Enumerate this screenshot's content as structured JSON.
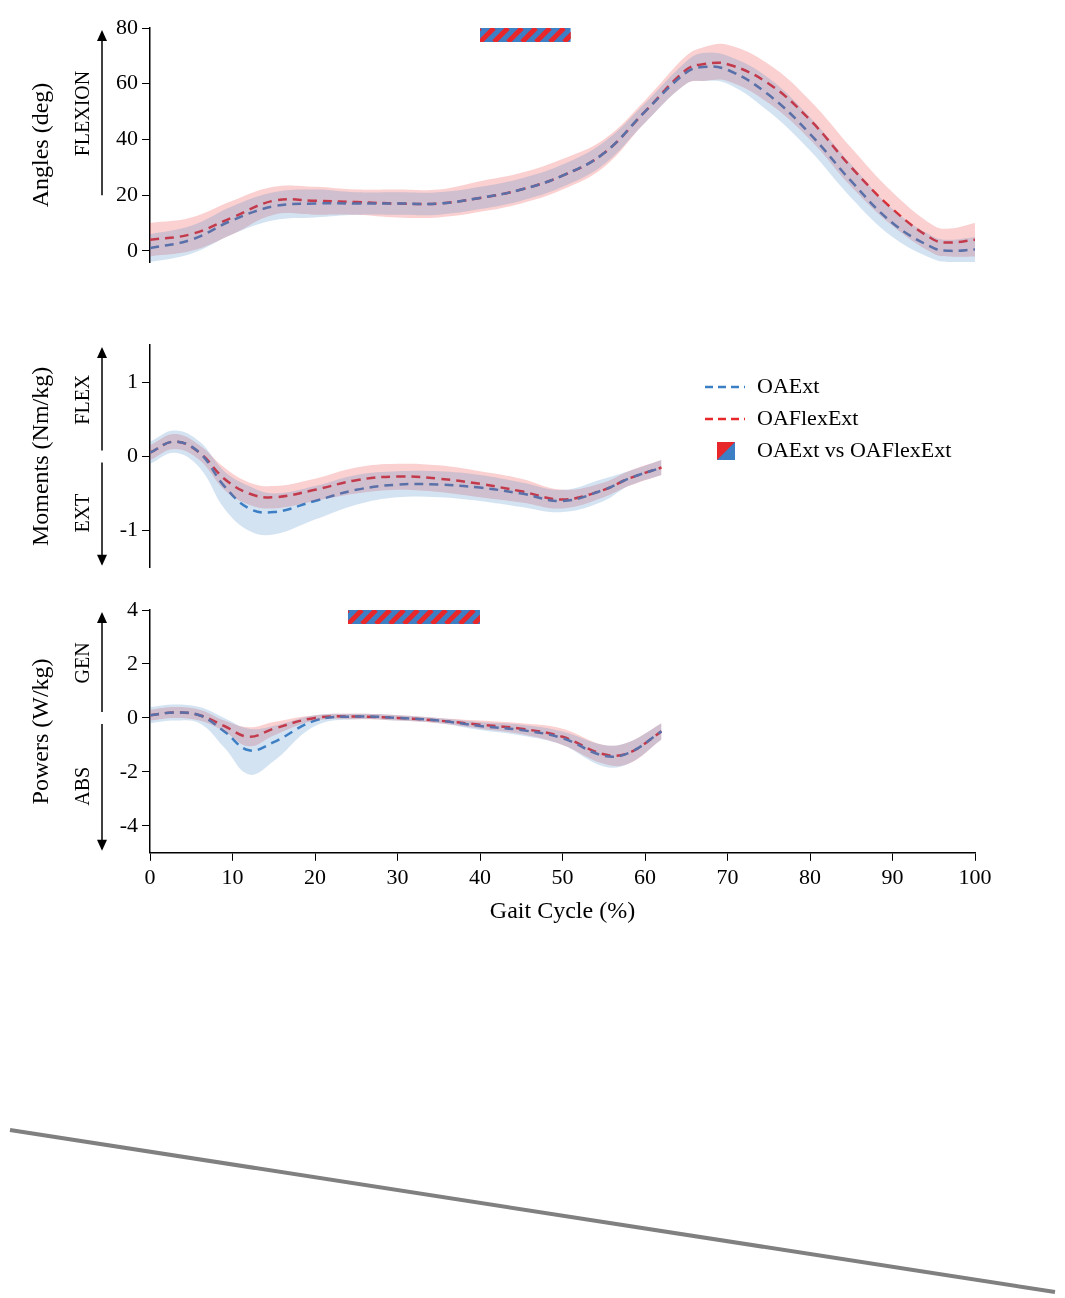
{
  "chart_data": [
    {
      "type": "line",
      "ylabel": "Angles (deg)",
      "direction_labels": {
        "up": "FLEXION"
      },
      "xlim": [
        0,
        100
      ],
      "ylim": [
        -4,
        80
      ],
      "yticks": [
        0,
        20,
        40,
        60,
        80
      ],
      "grid": false,
      "tick_labels": "y",
      "significance": [
        [
          40,
          51
        ]
      ],
      "x": [
        0,
        5,
        10,
        15,
        20,
        25,
        30,
        35,
        40,
        45,
        50,
        55,
        60,
        65,
        67,
        70,
        75,
        80,
        85,
        90,
        95,
        97,
        100
      ],
      "series": [
        {
          "name": "OAExt",
          "color": "#3d7fc4",
          "line_style": "dashed",
          "values": [
            1,
            4,
            11,
            16,
            17,
            17,
            17,
            17,
            19,
            22,
            27,
            35,
            50,
            64,
            66,
            65,
            56,
            42,
            25,
            10,
            1,
            0,
            0.5
          ],
          "upper": [
            6,
            9,
            16,
            21,
            22,
            21,
            21,
            21,
            23,
            26,
            31,
            39,
            53,
            68,
            71,
            70,
            62,
            48,
            31,
            15,
            5,
            4,
            5
          ],
          "lower": [
            -4,
            -1,
            6,
            11,
            12,
            13,
            13,
            13,
            15,
            18,
            23,
            31,
            46,
            60,
            61,
            60,
            50,
            36,
            19,
            5,
            -3,
            -4,
            -4
          ]
        },
        {
          "name": "OAFlexExt",
          "color": "#e8272a",
          "line_style": "dashed",
          "values": [
            4,
            6,
            12,
            18,
            18,
            17.5,
            17,
            17,
            19,
            22,
            27,
            35,
            50,
            65,
            67,
            67,
            60,
            47,
            30,
            15,
            4,
            3,
            4
          ],
          "upper": [
            10,
            12,
            18,
            23,
            23,
            22,
            22,
            22,
            25,
            28,
            33,
            40,
            54,
            70,
            73,
            74,
            67,
            54,
            37,
            21,
            9,
            8,
            10
          ],
          "lower": [
            -2,
            0,
            6,
            13,
            13,
            13,
            12,
            12,
            14,
            17,
            22,
            30,
            46,
            60,
            61,
            61,
            53,
            40,
            23,
            9,
            -1,
            -2,
            -2
          ]
        }
      ]
    },
    {
      "type": "line",
      "ylabel": "Moments (Nm/kg)",
      "direction_labels": {
        "up": "FLEX",
        "down": "EXT"
      },
      "xlim": [
        0,
        100
      ],
      "ylim": [
        -1.5,
        1.5
      ],
      "yticks": [
        -1,
        0,
        1
      ],
      "grid": false,
      "tick_labels": "y",
      "legend": "upper right",
      "significance_name": "OAExt vs OAFlexExt",
      "x": [
        0,
        3,
        6,
        9,
        12,
        15,
        20,
        25,
        30,
        35,
        40,
        45,
        50,
        55,
        58,
        62
      ],
      "series": [
        {
          "name": "OAExt",
          "color": "#3d7fc4",
          "line_style": "dashed",
          "values": [
            0.05,
            0.2,
            0.05,
            -0.4,
            -0.7,
            -0.75,
            -0.6,
            -0.45,
            -0.38,
            -0.38,
            -0.42,
            -0.5,
            -0.6,
            -0.45,
            -0.3,
            -0.15
          ],
          "upper": [
            0.2,
            0.35,
            0.2,
            -0.2,
            -0.4,
            -0.5,
            -0.4,
            -0.25,
            -0.2,
            -0.2,
            -0.25,
            -0.35,
            -0.45,
            -0.3,
            -0.2,
            -0.05
          ],
          "lower": [
            -0.1,
            0.05,
            -0.15,
            -0.7,
            -1.0,
            -1.05,
            -0.85,
            -0.65,
            -0.55,
            -0.55,
            -0.6,
            -0.68,
            -0.75,
            -0.6,
            -0.4,
            -0.25
          ]
        },
        {
          "name": "OAFlexExt",
          "color": "#e8272a",
          "line_style": "dashed",
          "values": [
            0.05,
            0.2,
            0.05,
            -0.3,
            -0.5,
            -0.55,
            -0.45,
            -0.32,
            -0.27,
            -0.3,
            -0.37,
            -0.47,
            -0.58,
            -0.45,
            -0.3,
            -0.15
          ],
          "upper": [
            0.15,
            0.3,
            0.15,
            -0.15,
            -0.35,
            -0.4,
            -0.3,
            -0.15,
            -0.1,
            -0.12,
            -0.2,
            -0.3,
            -0.45,
            -0.35,
            -0.2,
            -0.05
          ],
          "lower": [
            -0.05,
            0.1,
            -0.05,
            -0.45,
            -0.65,
            -0.7,
            -0.6,
            -0.5,
            -0.45,
            -0.48,
            -0.55,
            -0.62,
            -0.7,
            -0.55,
            -0.4,
            -0.25
          ]
        }
      ]
    },
    {
      "type": "line",
      "ylabel": "Powers (W/kg)",
      "xlabel": "Gait Cycle (%)",
      "direction_labels": {
        "up": "GEN",
        "down": "ABS"
      },
      "xlim": [
        0,
        100
      ],
      "xticks": [
        0,
        10,
        20,
        30,
        40,
        50,
        60,
        70,
        80,
        90,
        100
      ],
      "ylim": [
        -5,
        4
      ],
      "yticks": [
        -4,
        -2,
        0,
        2,
        4
      ],
      "grid": false,
      "significance": [
        [
          24,
          40
        ]
      ],
      "x": [
        0,
        3,
        6,
        9,
        12,
        15,
        20,
        25,
        30,
        35,
        40,
        45,
        50,
        55,
        58,
        62
      ],
      "series": [
        {
          "name": "OAExt",
          "color": "#3d7fc4",
          "line_style": "dashed",
          "values": [
            0.1,
            0.2,
            0.1,
            -0.5,
            -1.2,
            -0.9,
            -0.1,
            0.05,
            0,
            -0.1,
            -0.3,
            -0.45,
            -0.75,
            -1.4,
            -1.3,
            -0.5
          ],
          "upper": [
            0.4,
            0.5,
            0.4,
            0,
            -0.4,
            -0.3,
            0.1,
            0.15,
            0.1,
            0,
            -0.15,
            -0.25,
            -0.5,
            -1.0,
            -0.9,
            -0.2
          ],
          "lower": [
            -0.2,
            -0.1,
            -0.2,
            -1.1,
            -2.1,
            -1.6,
            -0.3,
            -0.05,
            -0.1,
            -0.2,
            -0.45,
            -0.65,
            -1.0,
            -1.8,
            -1.7,
            -0.8
          ]
        },
        {
          "name": "OAFlexExt",
          "color": "#e8272a",
          "line_style": "dashed",
          "values": [
            0.1,
            0.2,
            0.1,
            -0.3,
            -0.7,
            -0.4,
            0,
            0.05,
            0,
            -0.1,
            -0.25,
            -0.4,
            -0.7,
            -1.35,
            -1.3,
            -0.5
          ],
          "upper": [
            0.3,
            0.4,
            0.3,
            -0.1,
            -0.35,
            -0.15,
            0.1,
            0.15,
            0.1,
            0,
            -0.1,
            -0.2,
            -0.4,
            -1.0,
            -0.9,
            -0.2
          ],
          "lower": [
            -0.1,
            0,
            -0.1,
            -0.5,
            -1.05,
            -0.65,
            -0.1,
            -0.05,
            -0.1,
            -0.2,
            -0.4,
            -0.6,
            -1.0,
            -1.7,
            -1.7,
            -0.8
          ]
        }
      ]
    }
  ]
}
